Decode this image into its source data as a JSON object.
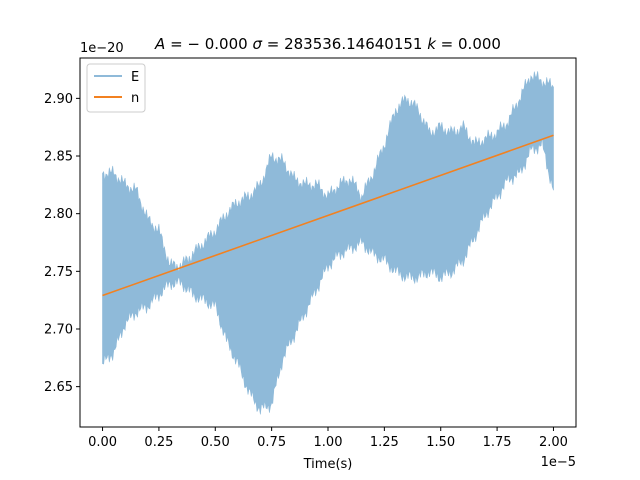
{
  "chart_data": {
    "type": "line",
    "title_html_parts": [
      {
        "text": "A",
        "italic": true
      },
      {
        "text": " = − 0.000 ",
        "italic": false
      },
      {
        "text": "σ",
        "italic": true
      },
      {
        "text": " = 283536.14640151 ",
        "italic": false
      },
      {
        "text": "k",
        "italic": true
      },
      {
        "text": " = 0.000",
        "italic": false
      }
    ],
    "xlabel": "Time(s)",
    "ylabel": "",
    "x_scale_label": "1e−5",
    "y_scale_label": "1e−20",
    "xlim": [
      -0.1,
      2.1
    ],
    "ylim": [
      2.615,
      2.935
    ],
    "x_ticks": [
      0.0,
      0.25,
      0.5,
      0.75,
      1.0,
      1.25,
      1.5,
      1.75,
      2.0
    ],
    "x_tick_labels": [
      "0.00",
      "0.25",
      "0.50",
      "0.75",
      "1.00",
      "1.25",
      "1.50",
      "1.75",
      "2.00"
    ],
    "y_ticks": [
      2.65,
      2.7,
      2.75,
      2.8,
      2.85,
      2.9
    ],
    "y_tick_labels": [
      "2.65",
      "2.70",
      "2.75",
      "2.80",
      "2.85",
      "2.90"
    ],
    "legend_position": "top-left",
    "grid": false,
    "series": [
      {
        "name": "E",
        "kind": "band",
        "color": "#8fbad9",
        "x": [
          0.0,
          0.05,
          0.1,
          0.15,
          0.2,
          0.25,
          0.3,
          0.35,
          0.4,
          0.45,
          0.5,
          0.55,
          0.6,
          0.65,
          0.7,
          0.75,
          0.8,
          0.85,
          0.9,
          0.95,
          1.0,
          1.05,
          1.1,
          1.15,
          1.2,
          1.25,
          1.3,
          1.35,
          1.4,
          1.45,
          1.5,
          1.55,
          1.6,
          1.65,
          1.7,
          1.75,
          1.8,
          1.85,
          1.9,
          1.95,
          2.0
        ],
        "upper": [
          2.835,
          2.835,
          2.825,
          2.82,
          2.795,
          2.785,
          2.755,
          2.755,
          2.765,
          2.775,
          2.785,
          2.8,
          2.81,
          2.815,
          2.825,
          2.85,
          2.845,
          2.83,
          2.825,
          2.825,
          2.815,
          2.825,
          2.83,
          2.815,
          2.835,
          2.86,
          2.89,
          2.9,
          2.89,
          2.87,
          2.875,
          2.87,
          2.875,
          2.86,
          2.865,
          2.87,
          2.88,
          2.9,
          2.92,
          2.915,
          2.91
        ],
        "lower": [
          2.67,
          2.68,
          2.705,
          2.715,
          2.72,
          2.73,
          2.74,
          2.74,
          2.73,
          2.725,
          2.72,
          2.69,
          2.67,
          2.645,
          2.63,
          2.635,
          2.675,
          2.695,
          2.715,
          2.735,
          2.755,
          2.765,
          2.77,
          2.775,
          2.765,
          2.76,
          2.75,
          2.745,
          2.745,
          2.75,
          2.745,
          2.75,
          2.76,
          2.78,
          2.8,
          2.815,
          2.83,
          2.835,
          2.855,
          2.86,
          2.82
        ]
      },
      {
        "name": "n",
        "kind": "line",
        "color": "#f28120",
        "x": [
          0.0,
          2.0
        ],
        "y": [
          2.729,
          2.868
        ]
      }
    ]
  }
}
